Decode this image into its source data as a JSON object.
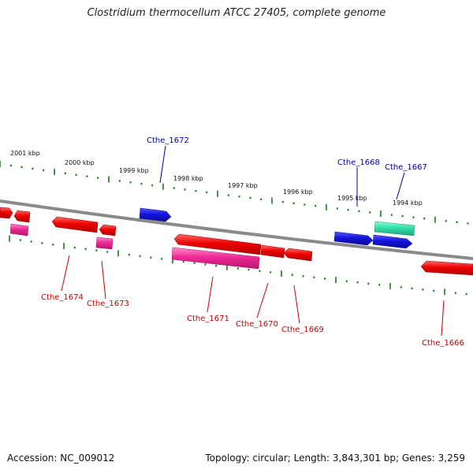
{
  "title": "Clostridium thermocellum ATCC 27405, complete genome",
  "footer": {
    "accession": "Accession: NC_009012",
    "summary": "Topology: circular; Length: 3,843,301 bp; Genes: 3,259"
  },
  "scale_labels": [
    "2001 kbp",
    "2000 kbp",
    "1999 kbp",
    "1998 kbp",
    "1997 kbp",
    "1996 kbp",
    "1995 kbp",
    "1994 kbp"
  ],
  "gene_labels": {
    "cthe_1672": "Cthe_1672",
    "cthe_1668": "Cthe_1668",
    "cthe_1667": "Cthe_1667",
    "cthe_1674": "Cthe_1674",
    "cthe_1673": "Cthe_1673",
    "cthe_1671": "Cthe_1671",
    "cthe_1670": "Cthe_1670",
    "cthe_1669": "Cthe_1669",
    "cthe_1666": "Cthe_1666"
  },
  "colors": {
    "backbone": "#8a8a8a",
    "tick": "#1f7a1f",
    "gene_red": "#ee0000",
    "gene_magenta": "#ee2a96",
    "gene_blue": "#1414dd",
    "gene_teal": "#33ddaa",
    "label_red": "#cc0000",
    "label_blue": "#0000aa"
  }
}
